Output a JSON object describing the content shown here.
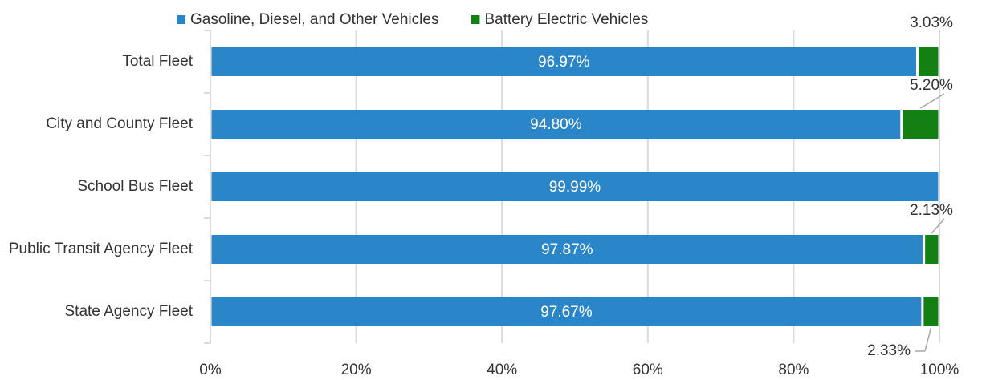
{
  "chart_data": {
    "type": "stacked_barh",
    "categories": [
      "Total Fleet",
      "City and County Fleet",
      "School Bus Fleet",
      "Public Transit Agency Fleet",
      "State Agency Fleet"
    ],
    "series": [
      {
        "name": "Gasoline, Diesel, and Other Vehicles",
        "color": "#2b86c9",
        "values": [
          96.97,
          94.8,
          99.99,
          97.87,
          97.67
        ],
        "value_labels": [
          "96.97%",
          "94.80%",
          "99.99%",
          "97.87%",
          "97.67%"
        ]
      },
      {
        "name": "Battery Electric Vehicles",
        "color": "#148014",
        "values": [
          3.03,
          5.2,
          0.01,
          2.13,
          2.33
        ],
        "value_labels": [
          "3.03%",
          "5.20%",
          null,
          "2.13%",
          "2.33%"
        ]
      }
    ],
    "xlim": [
      0,
      100
    ],
    "xticks": [
      {
        "value": 0,
        "label": "0%"
      },
      {
        "value": 20,
        "label": "20%"
      },
      {
        "value": 40,
        "label": "40%"
      },
      {
        "value": 60,
        "label": "60%"
      },
      {
        "value": 80,
        "label": "80%"
      },
      {
        "value": 100,
        "label": "100%"
      }
    ],
    "grid": true,
    "legend": "top"
  }
}
